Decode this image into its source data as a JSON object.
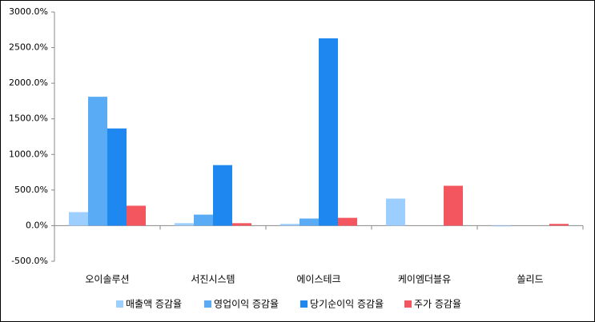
{
  "chart_data": {
    "type": "bar",
    "categories": [
      "오이솔루션",
      "서진시스템",
      "에이스테크",
      "케이엠더블유",
      "쏠리드"
    ],
    "series": [
      {
        "name": "매출액 증감율",
        "color": "#9ccfff",
        "values": [
          190,
          35,
          25,
          380,
          -10
        ]
      },
      {
        "name": "영업이익 증감율",
        "color": "#5aabf5",
        "values": [
          1810,
          155,
          100,
          null,
          null
        ]
      },
      {
        "name": "당기순이익 증감율",
        "color": "#1e88f0",
        "values": [
          1365,
          850,
          2630,
          null,
          null
        ]
      },
      {
        "name": "주가 증감율",
        "color": "#f4565f",
        "values": [
          280,
          35,
          110,
          560,
          25
        ]
      }
    ],
    "ylim": [
      -500,
      3000
    ],
    "yticks": [
      {
        "value": -500,
        "label": "-500.0%"
      },
      {
        "value": 0,
        "label": "0.0%"
      },
      {
        "value": 500,
        "label": "500.0%"
      },
      {
        "value": 1000,
        "label": "1000.0%"
      },
      {
        "value": 1500,
        "label": "1500.0%"
      },
      {
        "value": 2000,
        "label": "2000.0%"
      },
      {
        "value": 2500,
        "label": "2500.0%"
      },
      {
        "value": 3000,
        "label": "3000.0%"
      }
    ],
    "grid": false,
    "legend": "bottom"
  }
}
